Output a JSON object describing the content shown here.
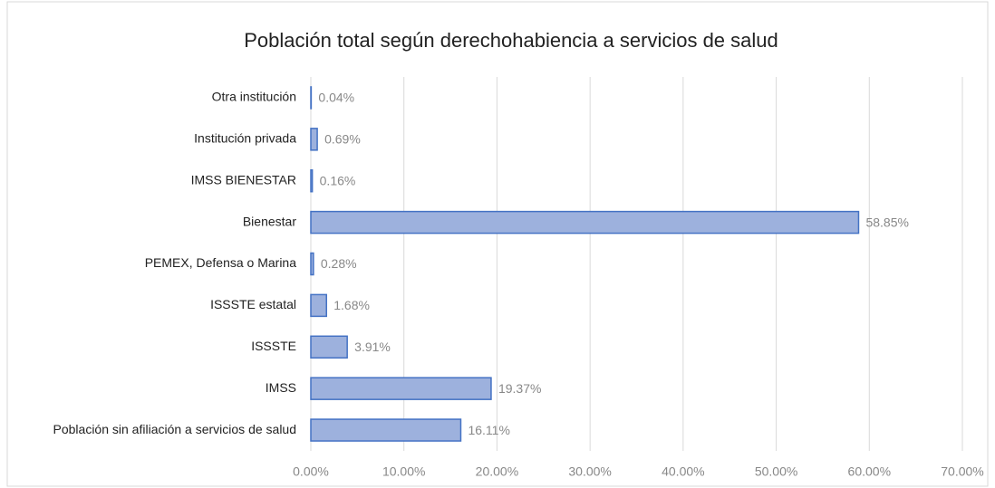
{
  "chart_data": {
    "type": "bar",
    "orientation": "horizontal",
    "title": "Población total según derechohabiencia a servicios de salud",
    "categories": [
      "Otra institución",
      "Institución privada",
      "IMSS BIENESTAR",
      "Bienestar",
      "PEMEX, Defensa o Marina",
      "ISSSTE estatal",
      "ISSSTE",
      "IMSS",
      "Población sin afiliación a servicios de salud"
    ],
    "values": [
      0.04,
      0.69,
      0.16,
      58.85,
      0.28,
      1.68,
      3.91,
      19.37,
      16.11
    ],
    "value_labels": [
      "0.04%",
      "0.69%",
      "0.16%",
      "58.85%",
      "0.28%",
      "1.68%",
      "3.91%",
      "19.37%",
      "16.11%"
    ],
    "color": "#9db1dd",
    "edge_color": "#4472c4",
    "xlim": [
      0,
      70
    ],
    "xticks": [
      {
        "value": 0,
        "label": "0.00%"
      },
      {
        "value": 10,
        "label": "10.00%"
      },
      {
        "value": 20,
        "label": "20.00%"
      },
      {
        "value": 30,
        "label": "30.00%"
      },
      {
        "value": 40,
        "label": "40.00%"
      },
      {
        "value": 50,
        "label": "50.00%"
      },
      {
        "value": 60,
        "label": "60.00%"
      },
      {
        "value": 70,
        "label": "70.00%"
      }
    ],
    "grid": true
  }
}
